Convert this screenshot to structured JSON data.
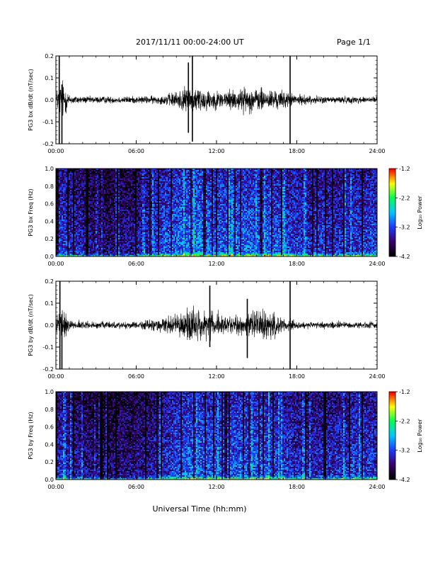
{
  "header": {
    "date_range": "2017/11/11  00:00-24:00 UT",
    "page": "Page 1/1"
  },
  "xlabel": "Universal Time (hh:mm)",
  "colorbar": {
    "ticks": [
      "-1.2",
      "-2.2",
      "-3.2",
      "-4.2"
    ],
    "label": "Log₁₀ Power",
    "colors": [
      "#000000",
      "#3a0070",
      "#1a3cff",
      "#00c8ff",
      "#00ff50",
      "#ffff00",
      "#ff0000"
    ]
  },
  "chart_data": [
    {
      "type": "line",
      "title": "",
      "ylabel": "PG3 bx dB/dt (nT/sec)",
      "xlabel": "",
      "x_ticks": [
        "00:00",
        "06:00",
        "12:00",
        "18:00",
        "24:00"
      ],
      "y_ticks": [
        "0.2",
        "0.1",
        "0.0",
        "-0.1",
        "-0.2"
      ],
      "xlim": [
        0,
        24
      ],
      "ylim": [
        -0.2,
        0.2
      ],
      "envelope": {
        "hours": [
          0,
          0.5,
          1,
          2,
          4,
          6,
          8,
          9,
          10,
          11,
          12,
          13,
          14,
          15,
          16,
          17,
          18,
          20,
          22,
          24
        ],
        "amplitude": [
          0.05,
          0.12,
          0.03,
          0.02,
          0.02,
          0.02,
          0.025,
          0.05,
          0.08,
          0.07,
          0.05,
          0.06,
          0.07,
          0.07,
          0.06,
          0.05,
          0.03,
          0.02,
          0.02,
          0.02
        ]
      },
      "spikes": [
        {
          "hour": 0.25,
          "min": -0.2,
          "max": 0.2
        },
        {
          "hour": 0.45,
          "min": -0.2,
          "max": 0.07
        },
        {
          "hour": 9.9,
          "min": -0.15,
          "max": 0.17
        },
        {
          "hour": 10.2,
          "min": -0.19,
          "max": 0.2
        },
        {
          "hour": 17.5,
          "min": -0.2,
          "max": 0.2
        }
      ]
    },
    {
      "type": "heatmap",
      "title": "",
      "ylabel": "PG3 bx Freq (Hz)",
      "x_ticks": [
        "00:00",
        "06:00",
        "12:00",
        "18:00",
        "24:00"
      ],
      "y_ticks": [
        "1.0",
        "0.8",
        "0.6",
        "0.4",
        "0.2",
        "0.0"
      ],
      "xlim": [
        0,
        24
      ],
      "ylim": [
        0.0,
        1.0
      ],
      "zlim": [
        -4.2,
        -1.2
      ],
      "activity": {
        "hours": [
          0,
          1,
          2,
          3,
          4,
          5,
          6,
          7,
          8,
          9,
          10,
          11,
          12,
          13,
          14,
          15,
          16,
          17,
          18,
          19,
          20,
          21,
          22,
          23,
          24
        ],
        "level": [
          0.55,
          0.45,
          0.4,
          0.25,
          0.25,
          0.3,
          0.35,
          0.45,
          0.55,
          0.6,
          0.65,
          0.65,
          0.6,
          0.6,
          0.6,
          0.6,
          0.6,
          0.55,
          0.5,
          0.45,
          0.5,
          0.45,
          0.5,
          0.5,
          0.55
        ]
      }
    },
    {
      "type": "line",
      "title": "",
      "ylabel": "PG3 by dB/dt (nT/sec)",
      "xlabel": "",
      "x_ticks": [
        "00:00",
        "06:00",
        "12:00",
        "18:00",
        "24:00"
      ],
      "y_ticks": [
        "0.2",
        "0.1",
        "0.0",
        "-0.1",
        "-0.2"
      ],
      "xlim": [
        0,
        24
      ],
      "ylim": [
        -0.2,
        0.2
      ],
      "envelope": {
        "hours": [
          0,
          0.5,
          1,
          2,
          4,
          6,
          7,
          8,
          9,
          10,
          11,
          12,
          13,
          14,
          15,
          16,
          17,
          18,
          20,
          22,
          24
        ],
        "amplitude": [
          0.04,
          0.1,
          0.03,
          0.02,
          0.02,
          0.02,
          0.03,
          0.04,
          0.06,
          0.09,
          0.09,
          0.07,
          0.04,
          0.07,
          0.09,
          0.08,
          0.05,
          0.02,
          0.02,
          0.02,
          0.02
        ]
      },
      "spikes": [
        {
          "hour": 0.3,
          "min": -0.2,
          "max": 0.2
        },
        {
          "hour": 0.45,
          "min": -0.2,
          "max": 0.05
        },
        {
          "hour": 11.5,
          "min": -0.1,
          "max": 0.18
        },
        {
          "hour": 14.3,
          "min": -0.15,
          "max": 0.12
        },
        {
          "hour": 17.5,
          "min": -0.2,
          "max": 0.2
        }
      ]
    },
    {
      "type": "heatmap",
      "title": "",
      "ylabel": "PG3 by Freq (Hz)",
      "x_ticks": [
        "00:00",
        "06:00",
        "12:00",
        "18:00",
        "24:00"
      ],
      "y_ticks": [
        "1.0",
        "0.8",
        "0.6",
        "0.4",
        "0.2",
        "0.0"
      ],
      "xlim": [
        0,
        24
      ],
      "ylim": [
        0.0,
        1.0
      ],
      "zlim": [
        -4.2,
        -1.2
      ],
      "activity": {
        "hours": [
          0,
          1,
          2,
          3,
          4,
          5,
          6,
          7,
          8,
          9,
          10,
          11,
          12,
          13,
          14,
          15,
          16,
          17,
          18,
          19,
          20,
          21,
          22,
          23,
          24
        ],
        "level": [
          0.5,
          0.4,
          0.35,
          0.25,
          0.25,
          0.3,
          0.3,
          0.35,
          0.45,
          0.55,
          0.6,
          0.6,
          0.55,
          0.6,
          0.6,
          0.6,
          0.55,
          0.5,
          0.45,
          0.4,
          0.45,
          0.45,
          0.5,
          0.5,
          0.5
        ]
      }
    }
  ]
}
